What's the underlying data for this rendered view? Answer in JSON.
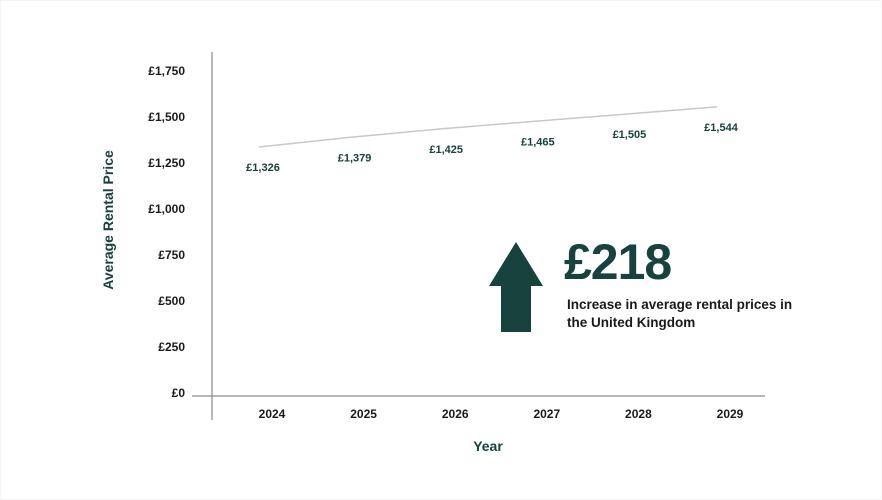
{
  "chart_data": {
    "type": "line",
    "title": "",
    "xlabel": "Year",
    "ylabel": "Average Rental Price",
    "x": [
      "2024",
      "2025",
      "2026",
      "2027",
      "2028",
      "2029"
    ],
    "y_ticks": [
      "£0",
      "£250",
      "£500",
      "£750",
      "£1,000",
      "£1,250",
      "£1,500",
      "£1,750"
    ],
    "ylim": [
      0,
      1750
    ],
    "series": [
      {
        "values": [
          1326,
          1379,
          1425,
          1465,
          1505,
          1544
        ],
        "labels": [
          "£1,326",
          "£1,379",
          "£1,425",
          "£1,465",
          "£1,505",
          "£1,544"
        ]
      }
    ],
    "grid": false,
    "line_color": "#c8c8c8",
    "accent_color": "#17423d"
  },
  "callout": {
    "icon": "arrow-up-icon",
    "value": "£218",
    "text": "Increase in average rental prices in the United Kingdom"
  }
}
